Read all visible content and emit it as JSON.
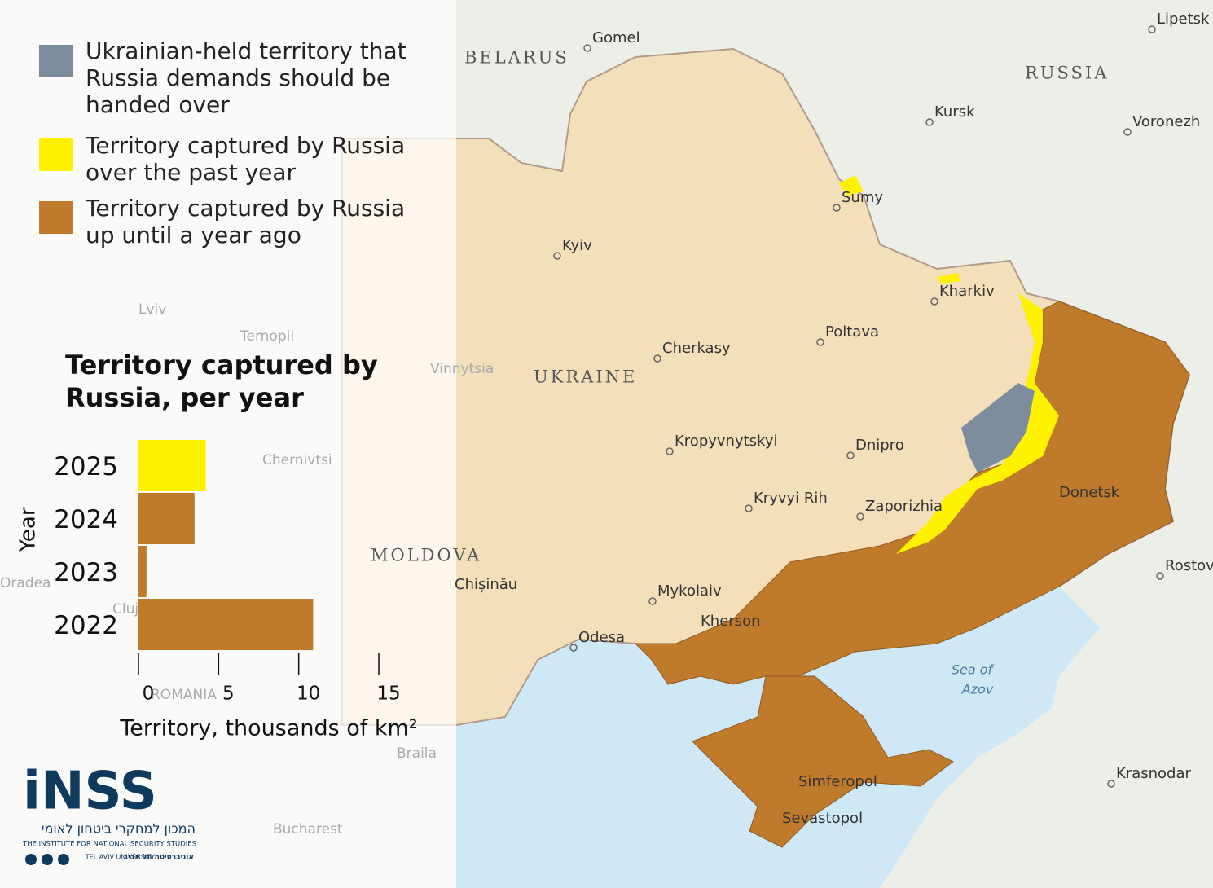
{
  "legend": [
    {
      "label": "Ukrainian-held territory that Russia demands should be handed over",
      "color": "#7d8d9e"
    },
    {
      "label": "Territory captured by Russia over the past year",
      "color": "#fff200"
    },
    {
      "label": "Territory captured by Russia up until a year ago",
      "color": "#c07a2c"
    }
  ],
  "map_labels": [
    "Gomel",
    "BELARUS",
    "Lipetsk",
    "RUSSIA",
    "Kursk",
    "Voronezh",
    "Sumy",
    "Kyiv",
    "Kharkiv",
    "Lviv",
    "Ternopil",
    "Poltava",
    "Cherkasy",
    "Vinnytsia",
    "UKRAINE",
    "Kropyvnytskyi",
    "Dnipro",
    "Chernivtsi",
    "Kryvyi Rih",
    "Zaporizhia",
    "MOLDOVA",
    "Chișinău",
    "Rostov",
    "Oradea",
    "Cluj",
    "Mykolaiv",
    "Kherson",
    "Odesa",
    "Donetsk",
    "Sea of",
    "Azov",
    "Krasnodar",
    "Simferopol",
    "Sevastopol",
    "ROMANIA",
    "Braila",
    "Bucharest"
  ],
  "logo": {
    "name": "iNSS",
    "hebrew": "המכון למחקרי ביטחון לאומי",
    "english": "THE INSTITUTE FOR NATIONAL SECURITY STUDIES",
    "university": "TEL AVIV UNIVERSITY",
    "university_hebrew": "אוניברסיטת תל אביב"
  },
  "chart_data": {
    "type": "barh",
    "title": "Territory captured by Russia, per year",
    "categories": [
      "2025",
      "2024",
      "2023",
      "2022"
    ],
    "values": [
      4.2,
      3.5,
      0.5,
      10.9
    ],
    "colors": [
      "#fff200",
      "#c07a2c",
      "#c07a2c",
      "#c07a2c"
    ],
    "xlabel": "Territory, thousands of km²",
    "ylabel": "Year",
    "xlim": [
      0,
      15
    ],
    "xticks": [
      0,
      5,
      10,
      15
    ]
  }
}
